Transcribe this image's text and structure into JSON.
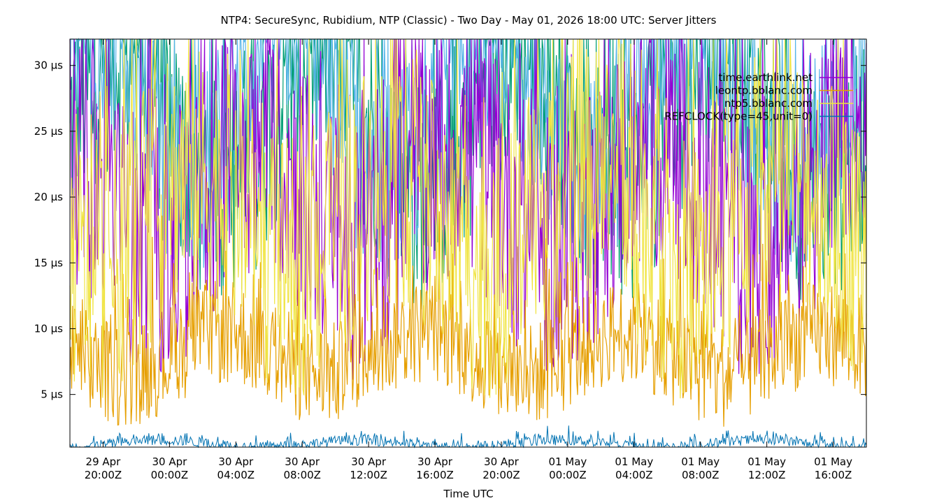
{
  "chart_data": {
    "type": "line",
    "title": "NTP4: SecureSync, Rubidium, NTP (Classic) - Two Day - May 01, 2026 18:00 UTC: Server Jitters",
    "xlabel": "Time UTC",
    "ylabel": "",
    "x_range": [
      "2026-04-29T18:00Z",
      "2026-05-01T18:00Z"
    ],
    "ylim": [
      1,
      32
    ],
    "y_unit": "µs",
    "grid": false,
    "legend_position": "top-right",
    "x_ticks": [
      {
        "line1": "29 Apr",
        "line2": "20:00Z"
      },
      {
        "line1": "30 Apr",
        "line2": "00:00Z"
      },
      {
        "line1": "30 Apr",
        "line2": "04:00Z"
      },
      {
        "line1": "30 Apr",
        "line2": "08:00Z"
      },
      {
        "line1": "30 Apr",
        "line2": "12:00Z"
      },
      {
        "line1": "30 Apr",
        "line2": "16:00Z"
      },
      {
        "line1": "30 Apr",
        "line2": "20:00Z"
      },
      {
        "line1": "01 May",
        "line2": "00:00Z"
      },
      {
        "line1": "01 May",
        "line2": "04:00Z"
      },
      {
        "line1": "01 May",
        "line2": "08:00Z"
      },
      {
        "line1": "01 May",
        "line2": "12:00Z"
      },
      {
        "line1": "01 May",
        "line2": "16:00Z"
      }
    ],
    "y_ticks": [
      {
        "value": 5,
        "label": "5 µs"
      },
      {
        "value": 10,
        "label": "10 µs"
      },
      {
        "value": 15,
        "label": "15 µs"
      },
      {
        "value": 20,
        "label": "20 µs"
      },
      {
        "value": 25,
        "label": "25 µs"
      },
      {
        "value": 30,
        "label": "30 µs"
      }
    ],
    "series": [
      {
        "name": "",
        "color": "#009e73",
        "base_us": 22,
        "spread_us": 9
      },
      {
        "name": "",
        "color": "#56b4e9",
        "base_us": 24,
        "spread_us": 8
      },
      {
        "name": "time.earthlink.net",
        "color": "#9400d3",
        "base_us": 16,
        "spread_us": 10
      },
      {
        "name": "leontp.bblanc.com",
        "color": "#e69f00",
        "base_us": 6.5,
        "spread_us": 4
      },
      {
        "name": "ntp5.bblanc.com",
        "color": "#f0e442",
        "base_us": 14,
        "spread_us": 10
      },
      {
        "name": "REFCLOCK(type=45,unit=0)",
        "color": "#0072b2",
        "base_us": 1.1,
        "spread_us": 0.4
      }
    ],
    "legend": [
      {
        "label": "time.earthlink.net",
        "color": "#9400d3"
      },
      {
        "label": "leontp.bblanc.com",
        "color": "#e69f00"
      },
      {
        "label": "ntp5.bblanc.com",
        "color": "#f0e442"
      },
      {
        "label": "REFCLOCK(type=45,unit=0)",
        "color": "#0072b2"
      }
    ]
  }
}
